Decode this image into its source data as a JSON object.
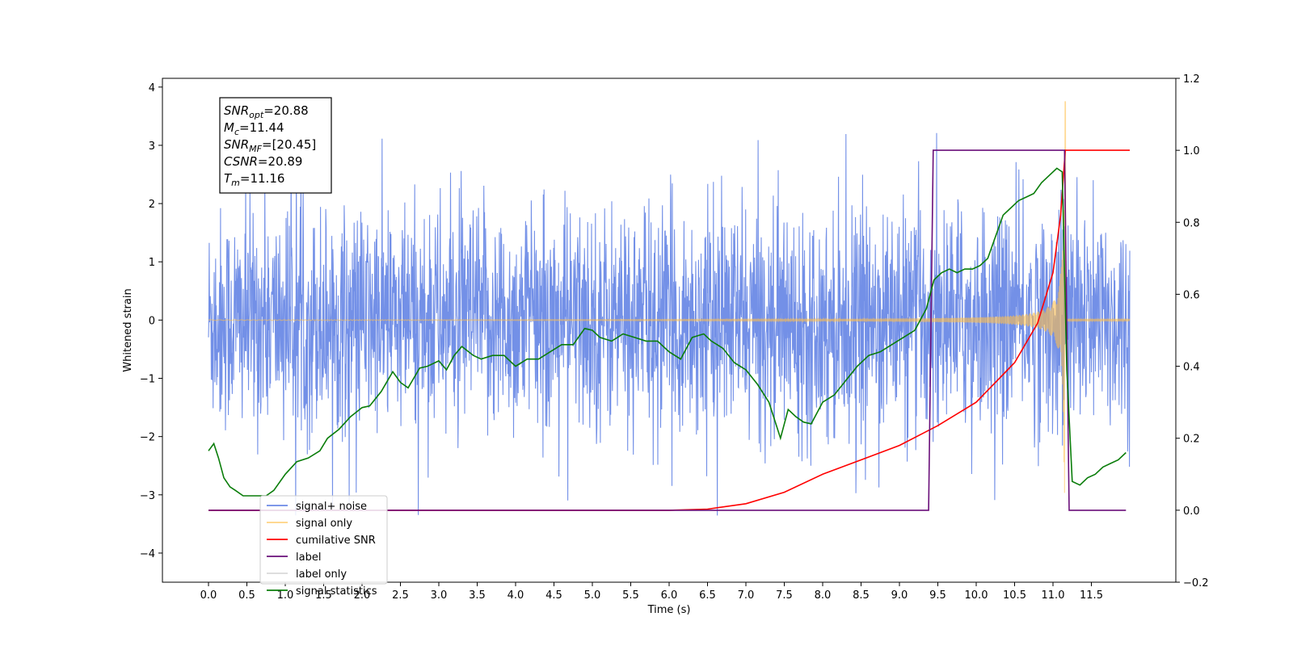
{
  "chart_data": {
    "type": "line",
    "xlabel": "Time (s)",
    "ylabel": "Whitened strain",
    "xlim": [
      -0.6,
      12.6
    ],
    "ylim": [
      -4.5,
      4.15
    ],
    "y2lim": [
      -0.2,
      1.2
    ],
    "x_ticks": [
      "0.0",
      "0.5",
      "1.0",
      "1.5",
      "2.0",
      "2.5",
      "3.0",
      "3.5",
      "4.0",
      "4.5",
      "5.0",
      "5.5",
      "6.0",
      "6.5",
      "7.0",
      "7.5",
      "8.0",
      "8.5",
      "9.0",
      "9.5",
      "10.0",
      "10.5",
      "11.0",
      "11.5"
    ],
    "y_ticks": [
      "−4",
      "−3",
      "−2",
      "−1",
      "0",
      "1",
      "2",
      "3",
      "4"
    ],
    "y2_ticks": [
      "−0.2",
      "0.0",
      "0.2",
      "0.4",
      "0.6",
      "0.8",
      "1.0",
      "1.2"
    ],
    "grid": false,
    "legend_position": "lower-left",
    "annotation": {
      "lines": [
        {
          "base": "SNR",
          "sub": "opt",
          "value": "=20.88"
        },
        {
          "base": "M",
          "sub": "c",
          "value": "=11.44"
        },
        {
          "base": "SNR",
          "sub": "MF",
          "value": "=[20.45]"
        },
        {
          "base": "CSNR",
          "sub": "",
          "value": "=20.89"
        },
        {
          "base": "T",
          "sub": "m",
          "value": "=11.16"
        }
      ]
    },
    "series": [
      {
        "name": "signal+ noise",
        "color": "#6b8ae6",
        "axis": "left",
        "description": "whitened noise, amplitude envelope about ±2.5 with spikes to ±3.2",
        "x_range": [
          0.0,
          12.0
        ],
        "envelope": 2.5
      },
      {
        "name": "signal only",
        "color": "#ffc04d",
        "axis": "left",
        "description": "chirp signal growing toward merger",
        "merger_time": 11.16,
        "peak_amplitude": 3.75
      },
      {
        "name": "cumilative SNR",
        "color": "#ff0000",
        "axis": "right",
        "x": [
          0.0,
          6.0,
          6.5,
          7.0,
          7.5,
          8.0,
          8.5,
          9.0,
          9.5,
          10.0,
          10.5,
          10.8,
          11.0,
          11.1,
          11.16,
          11.2,
          12.0
        ],
        "values": [
          0.0,
          0.0,
          0.003,
          0.018,
          0.05,
          0.1,
          0.14,
          0.18,
          0.235,
          0.3,
          0.41,
          0.52,
          0.66,
          0.82,
          1.0,
          1.0,
          1.0
        ]
      },
      {
        "name": "label",
        "color": "#6a0f7a",
        "axis": "right",
        "x": [
          0.0,
          9.38,
          9.44,
          11.15,
          11.21,
          11.95
        ],
        "values": [
          0.0,
          0.0,
          1.0,
          1.0,
          0.0,
          0.0
        ]
      },
      {
        "name": "label only",
        "color": "#d9d9d9",
        "axis": "right",
        "x": [],
        "values": []
      },
      {
        "name": "signal statistics",
        "color": "#0a7d0a",
        "axis": "right",
        "x": [
          0.0,
          0.07,
          0.13,
          0.2,
          0.28,
          0.35,
          0.45,
          0.6,
          0.75,
          0.85,
          1.0,
          1.15,
          1.3,
          1.45,
          1.55,
          1.7,
          1.85,
          2.0,
          2.1,
          2.25,
          2.4,
          2.5,
          2.6,
          2.75,
          2.85,
          3.0,
          3.1,
          3.2,
          3.3,
          3.45,
          3.55,
          3.7,
          3.85,
          4.0,
          4.15,
          4.3,
          4.45,
          4.6,
          4.75,
          4.9,
          5.0,
          5.1,
          5.25,
          5.4,
          5.55,
          5.7,
          5.85,
          6.0,
          6.15,
          6.3,
          6.45,
          6.55,
          6.7,
          6.85,
          7.0,
          7.15,
          7.3,
          7.45,
          7.55,
          7.65,
          7.75,
          7.85,
          8.0,
          8.15,
          8.3,
          8.45,
          8.6,
          8.75,
          8.9,
          9.05,
          9.2,
          9.35,
          9.45,
          9.55,
          9.65,
          9.75,
          9.85,
          9.95,
          10.05,
          10.15,
          10.25,
          10.35,
          10.45,
          10.55,
          10.65,
          10.75,
          10.85,
          10.95,
          11.05,
          11.12,
          11.18,
          11.25,
          11.35,
          11.45,
          11.55,
          11.65,
          11.75,
          11.85,
          11.95
        ],
        "values": [
          0.165,
          0.185,
          0.145,
          0.09,
          0.065,
          0.055,
          0.04,
          0.04,
          0.04,
          0.055,
          0.1,
          0.135,
          0.145,
          0.165,
          0.2,
          0.225,
          0.26,
          0.285,
          0.29,
          0.33,
          0.385,
          0.355,
          0.34,
          0.395,
          0.4,
          0.415,
          0.39,
          0.43,
          0.455,
          0.43,
          0.42,
          0.43,
          0.43,
          0.4,
          0.42,
          0.42,
          0.44,
          0.46,
          0.46,
          0.505,
          0.5,
          0.48,
          0.47,
          0.49,
          0.48,
          0.47,
          0.47,
          0.44,
          0.42,
          0.48,
          0.49,
          0.47,
          0.45,
          0.41,
          0.39,
          0.35,
          0.3,
          0.2,
          0.28,
          0.26,
          0.245,
          0.24,
          0.3,
          0.32,
          0.36,
          0.4,
          0.43,
          0.44,
          0.46,
          0.48,
          0.5,
          0.56,
          0.64,
          0.66,
          0.67,
          0.66,
          0.67,
          0.67,
          0.68,
          0.7,
          0.76,
          0.82,
          0.84,
          0.86,
          0.87,
          0.88,
          0.91,
          0.93,
          0.95,
          0.94,
          0.39,
          0.08,
          0.07,
          0.09,
          0.1,
          0.12,
          0.13,
          0.14,
          0.16
        ]
      }
    ]
  }
}
